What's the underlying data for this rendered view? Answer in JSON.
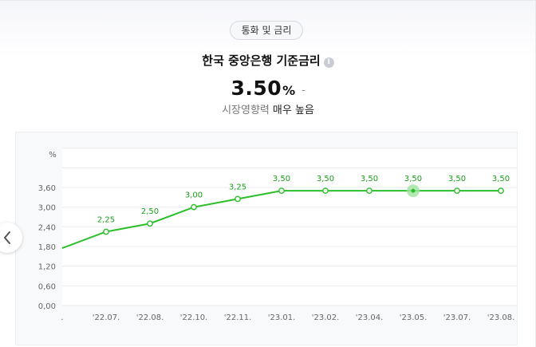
{
  "category_chip": "통화 및 금리",
  "indicator": {
    "title": "한국 중앙은행 기준금리",
    "value": "3.50",
    "unit": "%",
    "change": "-",
    "impact_label": "시장영향력",
    "impact_value": "매우 높음"
  },
  "colors": {
    "line": "#2bbf2b",
    "highlight": "#9fe39f",
    "label": "#1a9e1a",
    "grid": "#e9ebee"
  },
  "chart_data": {
    "type": "line",
    "y_unit_label": "%",
    "y_ticks": [
      "0,00",
      "0,60",
      "1,20",
      "1,80",
      "2,40",
      "3,00",
      "3,60"
    ],
    "ylim": [
      0,
      3.6
    ],
    "x_tick_labels": [
      ".",
      "'22.07.",
      "'22.08.",
      "'22.10.",
      "'22.11.",
      "'23.01.",
      "'23.02.",
      "'23.04.",
      "'23.05.",
      "'23.07.",
      "'23.08."
    ],
    "series": [
      {
        "values": [
          1.75,
          2.25,
          2.5,
          3.0,
          3.25,
          3.5,
          3.5,
          3.5,
          3.5,
          3.5,
          3.5
        ],
        "labels": [
          "",
          "2,25",
          "2,50",
          "3,00",
          "3,25",
          "3,50",
          "3,50",
          "3,50",
          "3,50",
          "3,50",
          "3,50"
        ]
      }
    ],
    "highlighted_index": 8,
    "grid": true,
    "legend": "none"
  }
}
